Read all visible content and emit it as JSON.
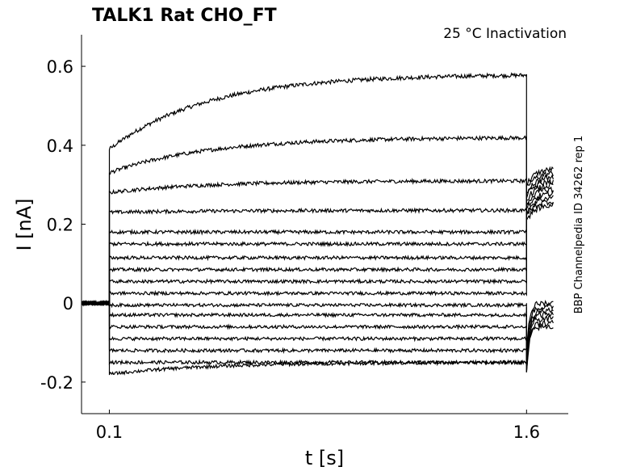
{
  "chart_data": {
    "type": "line",
    "title": "TALK1  Rat  CHO_FT",
    "annotation": "25 °C  Inactivation",
    "side_note": "BBP Channelpedia ID 34262 rep 1",
    "xlabel": "t [s]",
    "ylabel": "I [nA]",
    "xlim": [
      0.0,
      1.75
    ],
    "ylim": [
      -0.28,
      0.68
    ],
    "xticks": [
      0.1,
      1.6
    ],
    "xtick_labels": [
      "0.1",
      "1.6"
    ],
    "yticks": [
      -0.2,
      0,
      0.2,
      0.4,
      0.6
    ],
    "ytick_labels": [
      "-0.2",
      "0",
      "0.2",
      "0.4",
      "0.6"
    ],
    "grid": false,
    "line_color": "#000000",
    "pulse_start": 0.1,
    "pulse_end": 1.6,
    "baseline": 0.0,
    "series": [
      {
        "start": 0.39,
        "end": 0.58,
        "tail": 0.34
      },
      {
        "start": 0.33,
        "end": 0.42,
        "tail": 0.33
      },
      {
        "start": 0.28,
        "end": 0.31,
        "tail": 0.32
      },
      {
        "start": 0.23,
        "end": 0.235,
        "tail": 0.31
      },
      {
        "start": 0.18,
        "end": 0.18,
        "tail": 0.3
      },
      {
        "start": 0.15,
        "end": 0.15,
        "tail": 0.29
      },
      {
        "start": 0.115,
        "end": 0.115,
        "tail": 0.28
      },
      {
        "start": 0.085,
        "end": 0.085,
        "tail": 0.27
      },
      {
        "start": 0.055,
        "end": 0.055,
        "tail": 0.26
      },
      {
        "start": 0.025,
        "end": 0.025,
        "tail": 0.25
      },
      {
        "start": -0.005,
        "end": -0.005,
        "tail": 0.0
      },
      {
        "start": -0.03,
        "end": -0.03,
        "tail": -0.01
      },
      {
        "start": -0.06,
        "end": -0.06,
        "tail": -0.02
      },
      {
        "start": -0.09,
        "end": -0.09,
        "tail": -0.03
      },
      {
        "start": -0.12,
        "end": -0.12,
        "tail": -0.04
      },
      {
        "start": -0.15,
        "end": -0.15,
        "tail": -0.05
      },
      {
        "start": -0.18,
        "end": -0.15,
        "tail": -0.06
      }
    ]
  }
}
